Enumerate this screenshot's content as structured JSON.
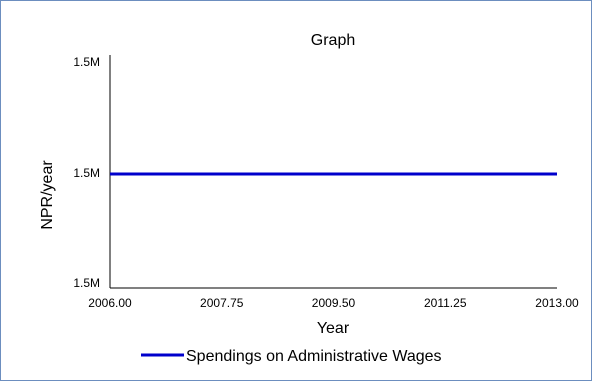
{
  "chart_data": {
    "type": "line",
    "title": "Graph",
    "xlabel": "Year",
    "ylabel": "NPR/year",
    "x_ticks": [
      "2006.00",
      "2007.75",
      "2009.50",
      "2011.25",
      "2013.00"
    ],
    "y_ticks": [
      "1.5M",
      "1.5M",
      "1.5M"
    ],
    "xlim": [
      2006,
      2013
    ],
    "ylim": [
      0,
      2
    ],
    "series": [
      {
        "name": "Spendings on Administrative Wages",
        "color": "#0000cc",
        "x": [
          2006,
          2013
        ],
        "y": [
          1,
          1
        ]
      }
    ],
    "legend_position": "bottom",
    "grid": false
  }
}
